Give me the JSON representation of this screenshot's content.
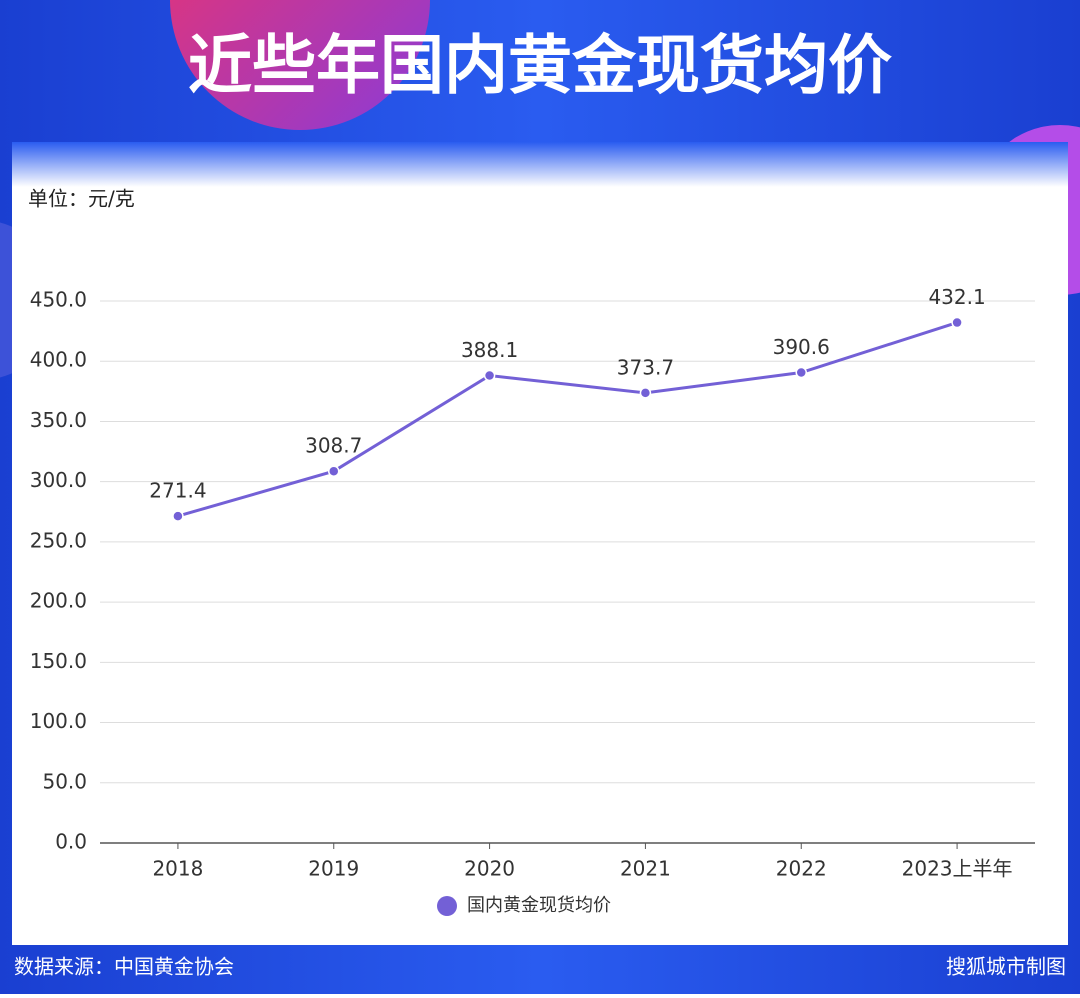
{
  "chart_data": {
    "type": "line",
    "title": "近些年国内黄金现货均价",
    "unit_label": "单位：元/克",
    "source": "数据来源：中国黄金协会",
    "credit": "搜狐城市制图",
    "categories": [
      "2018",
      "2019",
      "2020",
      "2021",
      "2022",
      "2023上半年"
    ],
    "series": [
      {
        "name": "国内黄金现货均价",
        "color": "#7360d6",
        "values": [
          271.4,
          308.7,
          388.1,
          373.7,
          390.6,
          432.1
        ]
      }
    ],
    "ylim": [
      0,
      450
    ],
    "yticks": [
      {
        "value": 0,
        "label": "0.0"
      },
      {
        "value": 50,
        "label": "50.0"
      },
      {
        "value": 100,
        "label": "100.0"
      },
      {
        "value": 150,
        "label": "150.0"
      },
      {
        "value": 200,
        "label": "200.0"
      },
      {
        "value": 250,
        "label": "250.0"
      },
      {
        "value": 300,
        "label": "300.0"
      },
      {
        "value": 350,
        "label": "350.0"
      },
      {
        "value": 400,
        "label": "400.0"
      },
      {
        "value": 450,
        "label": "450.0"
      }
    ],
    "grid": true
  }
}
